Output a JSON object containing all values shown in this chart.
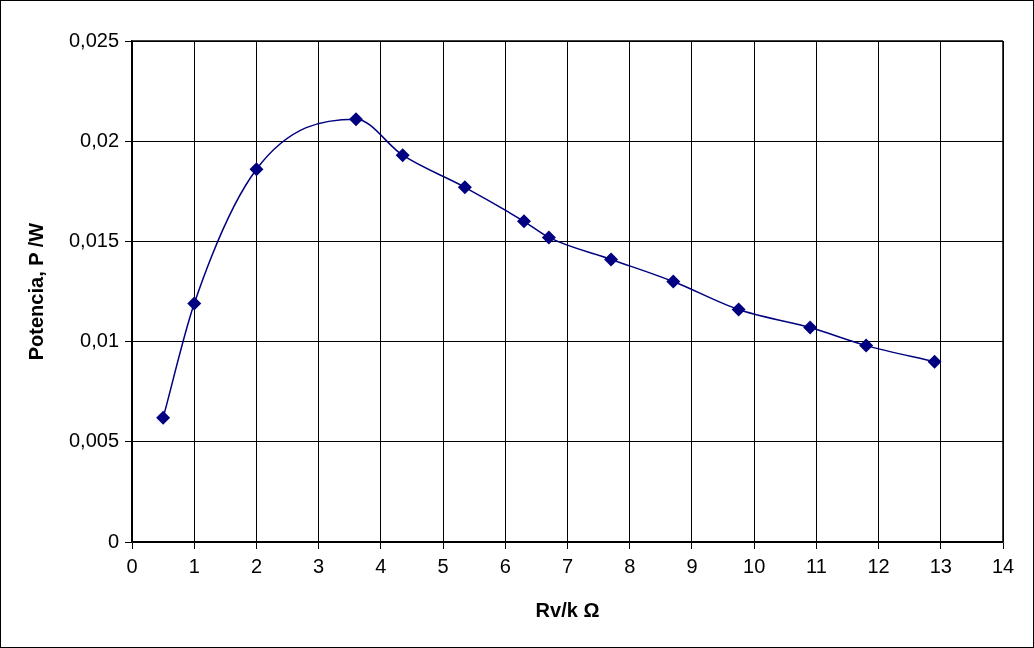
{
  "chart_data": {
    "type": "line",
    "xlabel": "Rv/k Ω",
    "ylabel": "Potencia, P /W",
    "xlim": [
      0,
      14
    ],
    "xticks": [
      0,
      1,
      2,
      3,
      4,
      5,
      6,
      7,
      8,
      9,
      10,
      11,
      12,
      13,
      14
    ],
    "ylim": [
      0,
      0.025
    ],
    "yticks": [
      0,
      {
        "value": 0.005,
        "label": "0,005"
      },
      {
        "value": 0.01,
        "label": "0,01"
      },
      {
        "value": 0.015,
        "label": "0,015"
      },
      {
        "value": 0.02,
        "label": "0,02"
      },
      {
        "value": 0.025,
        "label": "0,025"
      }
    ],
    "grid": true,
    "legend": false,
    "marker": "diamond",
    "line_style": "solid",
    "series": [
      {
        "color": "#000080",
        "x": [
          0.5,
          1.0,
          2.0,
          3.6,
          4.35,
          5.35,
          6.3,
          6.7,
          7.7,
          8.7,
          9.75,
          10.9,
          11.8,
          12.9
        ],
        "values": [
          0.0062,
          0.0119,
          0.0186,
          0.0211,
          0.0193,
          0.0177,
          0.016,
          0.0152,
          0.0141,
          0.013,
          0.0116,
          0.0107,
          0.0098,
          0.009
        ]
      }
    ]
  }
}
